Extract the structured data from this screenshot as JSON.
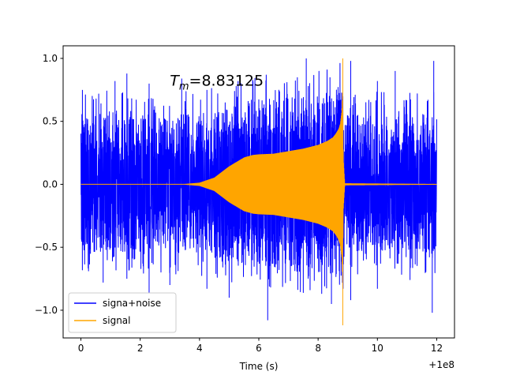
{
  "chart_data": {
    "type": "line",
    "title": "",
    "xlabel": "Time (s)",
    "ylabel": "",
    "x_offset_label": "+1e8",
    "xlim": [
      -0.6,
      12.6
    ],
    "ylim": [
      -1.22,
      1.1
    ],
    "x_ticks": [
      0,
      2,
      4,
      6,
      8,
      10,
      12
    ],
    "x_tick_labels": [
      "0",
      "2",
      "4",
      "6",
      "8",
      "10",
      "12"
    ],
    "y_ticks": [
      1.0,
      0.5,
      0.0,
      -0.5,
      -1.0
    ],
    "y_tick_labels": [
      "1.0",
      "0.5",
      "0.0",
      "−0.5",
      "−1.0"
    ],
    "annotation": {
      "prefix": "T",
      "subscript": "m",
      "value_text": "=8.83125",
      "x": 3.0,
      "y": 0.82
    },
    "legend": {
      "position": "lower-left",
      "entries": [
        {
          "label": "signa+noise",
          "color": "#0000ff"
        },
        {
          "label": "signal",
          "color": "#ffa500"
        }
      ]
    },
    "series": [
      {
        "name": "signa+noise",
        "color": "#0000ff",
        "description": "broadband noise with the chirp signal added",
        "x_range": [
          0,
          12
        ],
        "noise_band": [
          -0.6,
          0.62
        ],
        "peak_spikes": [
          {
            "x": 0.05,
            "y": 0.75
          },
          {
            "x": 0.6,
            "y": 0.72
          },
          {
            "x": 1.15,
            "y": 0.82
          },
          {
            "x": 1.55,
            "y": 0.88
          },
          {
            "x": 2.3,
            "y": 0.8
          },
          {
            "x": 3.4,
            "y": 0.84
          },
          {
            "x": 4.25,
            "y": 0.75
          },
          {
            "x": 5.3,
            "y": 0.82
          },
          {
            "x": 6.25,
            "y": 0.87
          },
          {
            "x": 7.3,
            "y": 0.85
          },
          {
            "x": 7.6,
            "y": 1.0
          },
          {
            "x": 8.4,
            "y": 0.85
          },
          {
            "x": 9.1,
            "y": 0.98
          },
          {
            "x": 10.0,
            "y": 0.82
          },
          {
            "x": 10.6,
            "y": 0.9
          },
          {
            "x": 11.9,
            "y": 0.98
          }
        ],
        "trough_spikes": [
          {
            "x": 0.25,
            "y": -0.6
          },
          {
            "x": 0.75,
            "y": -0.78
          },
          {
            "x": 1.55,
            "y": -0.75
          },
          {
            "x": 2.3,
            "y": -0.86
          },
          {
            "x": 3.0,
            "y": -0.8
          },
          {
            "x": 4.25,
            "y": -0.83
          },
          {
            "x": 5.0,
            "y": -0.9
          },
          {
            "x": 6.3,
            "y": -1.08
          },
          {
            "x": 7.5,
            "y": -0.86
          },
          {
            "x": 8.45,
            "y": -0.95
          },
          {
            "x": 9.1,
            "y": -0.92
          },
          {
            "x": 10.0,
            "y": -0.83
          },
          {
            "x": 11.1,
            "y": -0.76
          },
          {
            "x": 11.85,
            "y": -1.02
          }
        ]
      },
      {
        "name": "signal",
        "color": "#ffa500",
        "description": "chirp: zero until ~3.5 s, grows to ~0.23 by 5.8 s, then increases to merger at T_m",
        "envelope": {
          "t": [
            0,
            3.5,
            4.0,
            4.5,
            5.0,
            5.5,
            5.8,
            6.0,
            6.5,
            7.0,
            7.5,
            8.0,
            8.3,
            8.5,
            8.6,
            8.7,
            8.75,
            8.8,
            8.83,
            8.85,
            8.9,
            12.0
          ],
          "amplitude": [
            0,
            0,
            0.01,
            0.05,
            0.14,
            0.21,
            0.23,
            0.235,
            0.24,
            0.26,
            0.28,
            0.31,
            0.34,
            0.37,
            0.4,
            0.44,
            0.48,
            0.58,
            0.75,
            0.2,
            0.005,
            0
          ]
        },
        "merger_peak": {
          "x": 8.83125,
          "y_max": 1.0,
          "y_min": -1.12
        }
      }
    ]
  }
}
